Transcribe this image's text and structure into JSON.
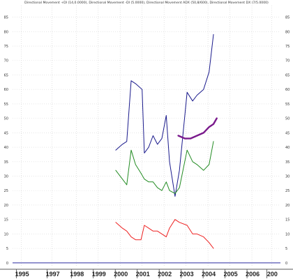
{
  "chart_data": {
    "type": "line",
    "title": "Directional Movement +DI (14,0.0000), Directional Movement -DI (5.0000), Directional Movement ADX (50,8/600), Directional Movement DX (7/5.0000)",
    "xlabel": "",
    "ylabel": "",
    "x_tick_labels": [
      "1995",
      "1997",
      "1998",
      "1999",
      "2000",
      "2001",
      "2002",
      "2003",
      "2004",
      "2005",
      "2006",
      "200"
    ],
    "x_tick_years": [
      1995,
      1996.4,
      1997.5,
      1998.5,
      1999.5,
      2000.5,
      2001.5,
      2002.5,
      2003.5,
      2004.5,
      2005.5,
      2006.4
    ],
    "x_range": [
      1994.6,
      2006.8
    ],
    "y_ticks": [
      0,
      5,
      10,
      15,
      20,
      25,
      30,
      35,
      40,
      45,
      50,
      55,
      60,
      65,
      70,
      75,
      80,
      85
    ],
    "y_tick_labels": [
      "0",
      "5",
      "10",
      "15",
      "20",
      "25",
      "30",
      "35",
      "40",
      "45",
      "50",
      "55",
      "60",
      "65",
      "70",
      "75",
      "80",
      "85"
    ],
    "ylim": [
      -1,
      89
    ],
    "grid": true,
    "series": [
      {
        "color": "#1a1a8c",
        "width": 1,
        "points": [
          [
            1999.3,
            39
          ],
          [
            1999.6,
            41
          ],
          [
            1999.8,
            42
          ],
          [
            2000.0,
            63
          ],
          [
            2000.2,
            62
          ],
          [
            2000.5,
            60
          ],
          [
            2000.6,
            38
          ],
          [
            2000.8,
            40
          ],
          [
            2001.0,
            44
          ],
          [
            2001.2,
            41
          ],
          [
            2001.4,
            43
          ],
          [
            2001.6,
            51
          ],
          [
            2001.75,
            35
          ],
          [
            2002.0,
            23
          ],
          [
            2002.2,
            32
          ],
          [
            2002.55,
            59
          ],
          [
            2002.8,
            56
          ],
          [
            2003.0,
            58
          ],
          [
            2003.3,
            60
          ],
          [
            2003.55,
            66
          ],
          [
            2003.75,
            79
          ]
        ]
      },
      {
        "color": "#228b22",
        "width": 1,
        "points": [
          [
            1999.3,
            32
          ],
          [
            1999.6,
            29
          ],
          [
            1999.8,
            27
          ],
          [
            2000.0,
            39
          ],
          [
            2000.2,
            34
          ],
          [
            2000.45,
            31
          ],
          [
            2000.6,
            29
          ],
          [
            2000.8,
            28
          ],
          [
            2001.0,
            28
          ],
          [
            2001.2,
            26
          ],
          [
            2001.4,
            25
          ],
          [
            2001.6,
            28
          ],
          [
            2001.75,
            25
          ],
          [
            2002.0,
            24
          ],
          [
            2002.2,
            26
          ],
          [
            2002.55,
            39
          ],
          [
            2002.8,
            35
          ],
          [
            2003.0,
            34
          ],
          [
            2003.3,
            32
          ],
          [
            2003.55,
            34
          ],
          [
            2003.75,
            42
          ]
        ]
      },
      {
        "color": "#ee2222",
        "width": 1,
        "points": [
          [
            1999.3,
            14
          ],
          [
            1999.6,
            12
          ],
          [
            1999.8,
            11
          ],
          [
            2000.0,
            9
          ],
          [
            2000.2,
            8
          ],
          [
            2000.45,
            8
          ],
          [
            2000.6,
            13
          ],
          [
            2000.8,
            12
          ],
          [
            2001.0,
            11
          ],
          [
            2001.2,
            11
          ],
          [
            2001.4,
            10
          ],
          [
            2001.6,
            9
          ],
          [
            2001.75,
            12
          ],
          [
            2002.0,
            15
          ],
          [
            2002.2,
            14
          ],
          [
            2002.55,
            13
          ],
          [
            2002.8,
            10
          ],
          [
            2003.0,
            10
          ],
          [
            2003.3,
            9
          ],
          [
            2003.55,
            7
          ],
          [
            2003.75,
            5
          ]
        ]
      },
      {
        "color": "#7a1a8c",
        "width": 2.4,
        "points": [
          [
            2002.15,
            44
          ],
          [
            2002.45,
            43
          ],
          [
            2002.7,
            43
          ],
          [
            2003.0,
            44
          ],
          [
            2003.3,
            45
          ],
          [
            2003.55,
            47
          ],
          [
            2003.75,
            48
          ],
          [
            2003.9,
            50
          ]
        ]
      }
    ],
    "baseline": {
      "value": 0,
      "color": "#2a2aa0"
    }
  }
}
